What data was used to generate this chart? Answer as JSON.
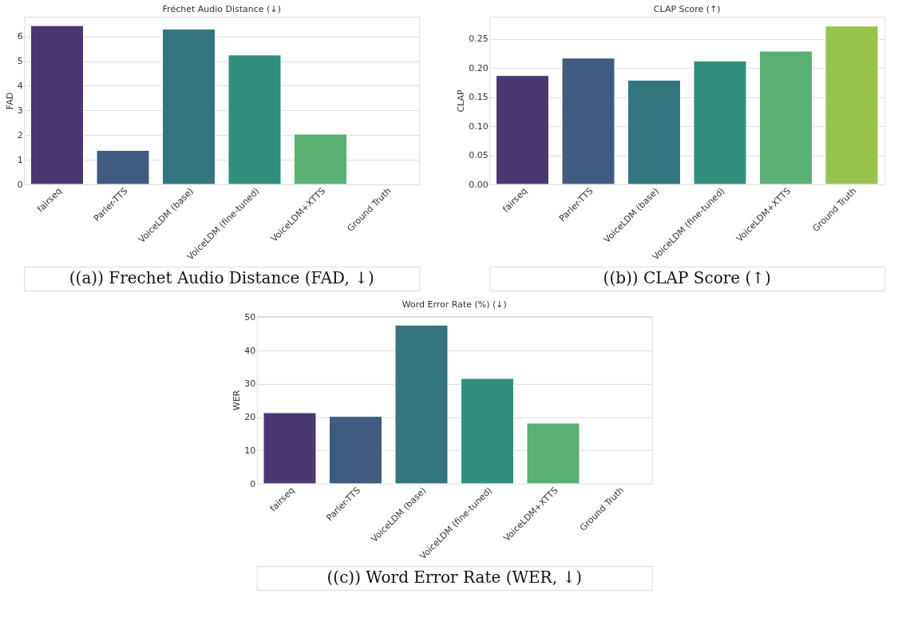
{
  "chart_data": [
    {
      "type": "bar",
      "title": "Fréchet Audio Distance (↓)",
      "ylabel": "FAD",
      "categories": [
        "fairseq",
        "Parler-TTS",
        "VoiceLDM (base)",
        "VoiceLDM (fine-tuned)",
        "VoiceLDM+XTTS",
        "Ground Truth"
      ],
      "values": [
        6.44,
        1.38,
        6.3,
        5.25,
        2.04,
        null
      ],
      "colors": [
        "#4a3872",
        "#3f5c80",
        "#33767f",
        "#31907c",
        "#59b072",
        "#98c44b"
      ],
      "ylim": [
        0,
        6.8
      ],
      "yticks": [
        0,
        1,
        2,
        3,
        4,
        5,
        6
      ],
      "grid": "y",
      "annotations": [
        "((a)) Frechet Audio Distance (FAD, ↓)"
      ]
    },
    {
      "type": "bar",
      "title": "CLAP Score (↑)",
      "ylabel": "CLAP",
      "categories": [
        "fairseq",
        "Parler-TTS",
        "VoiceLDM (base)",
        "VoiceLDM (fine-tuned)",
        "VoiceLDM+XTTS",
        "Ground Truth"
      ],
      "values": [
        0.187,
        0.217,
        0.179,
        0.212,
        0.229,
        0.272
      ],
      "colors": [
        "#4a3872",
        "#3f5c80",
        "#33767f",
        "#31907c",
        "#59b072",
        "#98c44b"
      ],
      "ylim": [
        0,
        0.288
      ],
      "yticks": [
        {
          "value": 0,
          "label": "0.00"
        },
        {
          "value": 0.05,
          "label": "0.05"
        },
        {
          "value": 0.1,
          "label": "0.10"
        },
        {
          "value": 0.15,
          "label": "0.15"
        },
        {
          "value": 0.2,
          "label": "0.20"
        },
        {
          "value": 0.25,
          "label": "0.25"
        }
      ],
      "grid": "y",
      "annotations": [
        "((b)) CLAP Score (↑)"
      ]
    },
    {
      "type": "bar",
      "title": "Word Error Rate (%) (↓)",
      "ylabel": "WER",
      "categories": [
        "fairseq",
        "Parler-TTS",
        "VoiceLDM (base)",
        "VoiceLDM (fine-tuned)",
        "VoiceLDM+XTTS",
        "Ground Truth"
      ],
      "values": [
        21.3,
        20.2,
        47.6,
        31.6,
        18.2,
        null
      ],
      "colors": [
        "#4a3872",
        "#3f5c80",
        "#33767f",
        "#31907c",
        "#59b072",
        "#98c44b"
      ],
      "ylim": [
        0,
        50.3
      ],
      "yticks": [
        0,
        10,
        20,
        30,
        40,
        50
      ],
      "grid": "y",
      "annotations": [
        "((c)) Word Error Rate (WER, ↓)"
      ]
    }
  ]
}
